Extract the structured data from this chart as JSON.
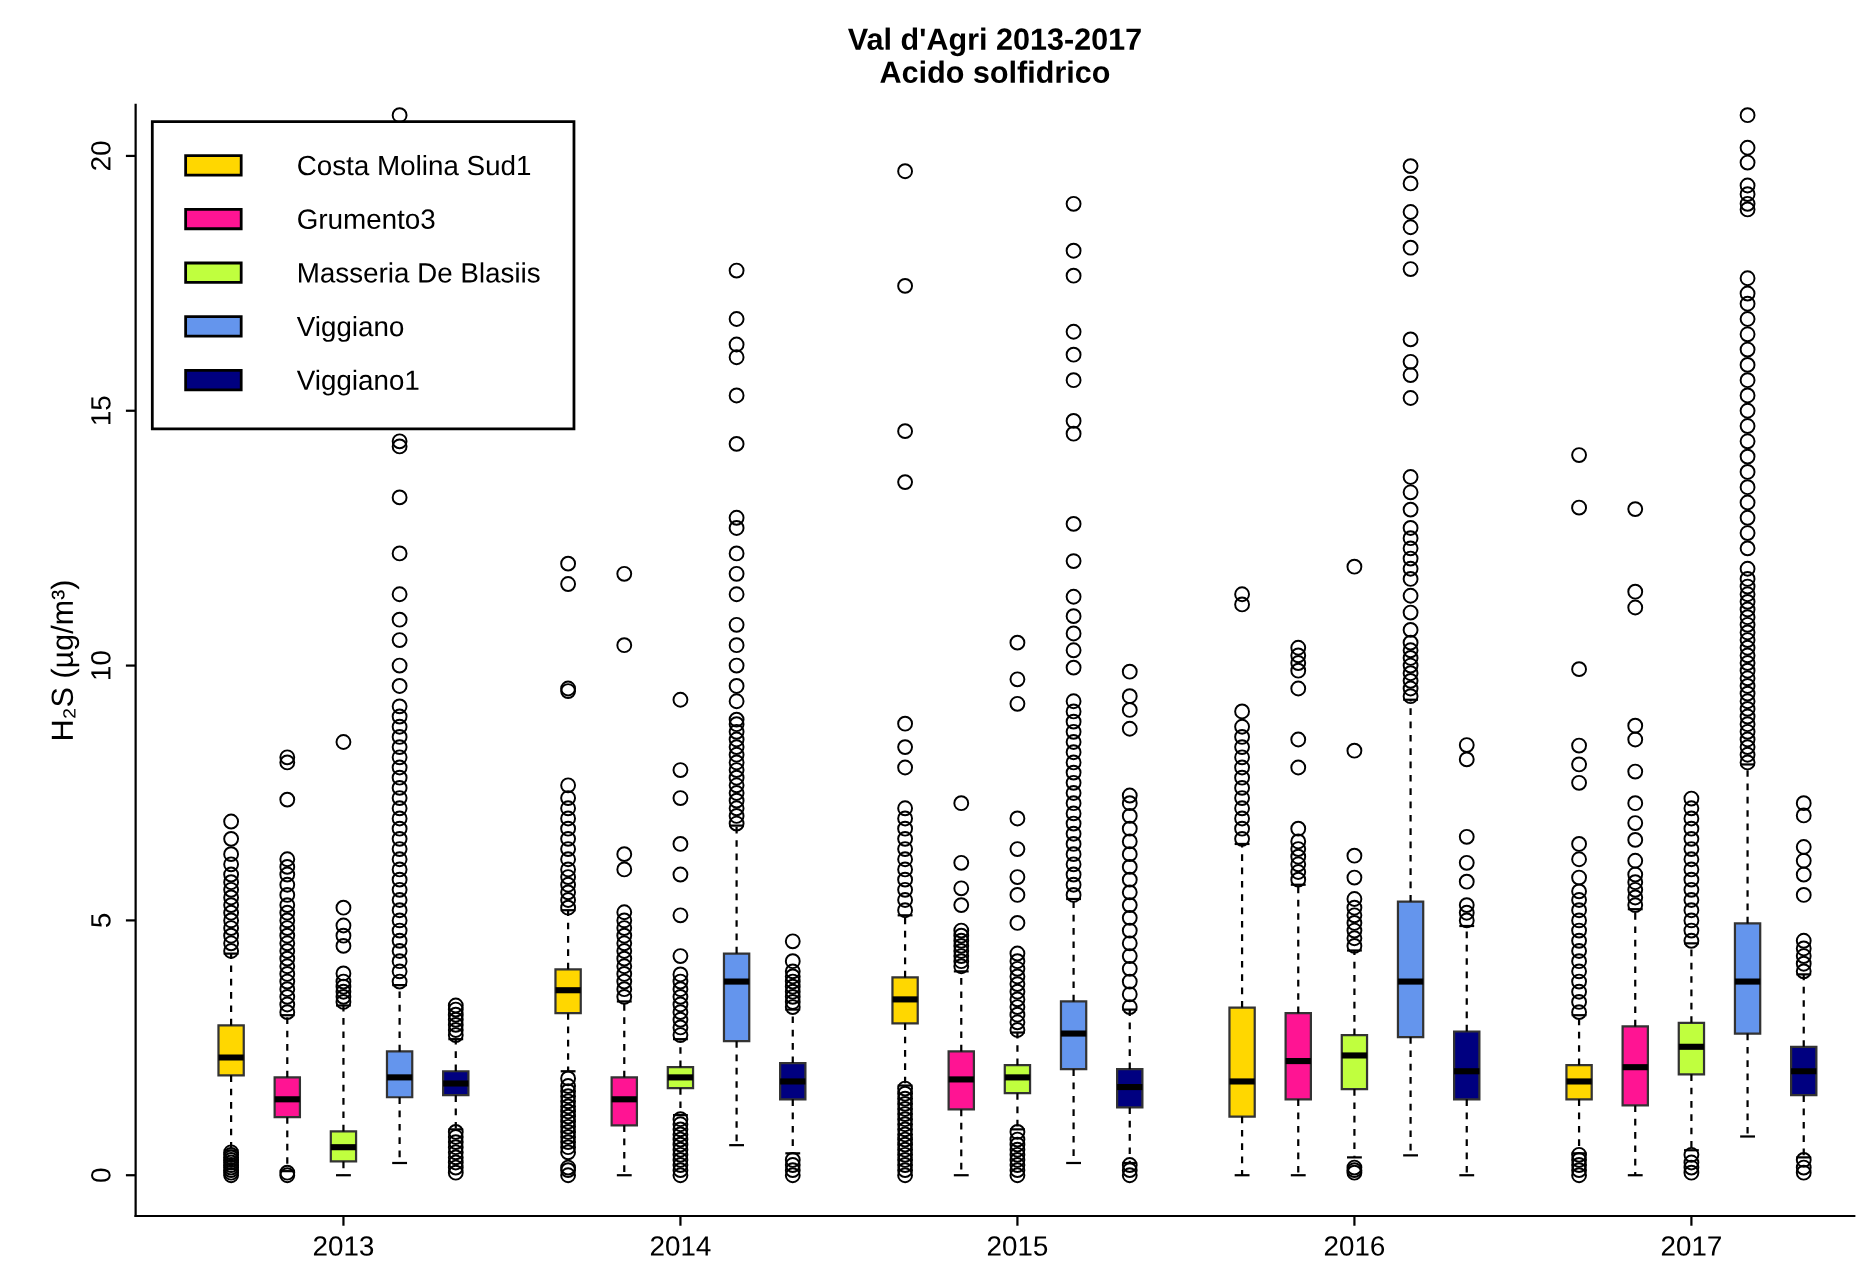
{
  "chart_data": {
    "type": "box",
    "title": "Val d'Agri 2013-2017",
    "subtitle": "Acido solfidrico",
    "ylabel": "H₂S (µg/m³)",
    "categories": [
      "2013",
      "2014",
      "2015",
      "2016",
      "2017"
    ],
    "ylim": [
      -0.8,
      21.0
    ],
    "yticks": [
      0,
      5,
      10,
      15,
      20
    ],
    "grid": false,
    "legend": "top left",
    "series": [
      {
        "name": "Costa Molina Sud1",
        "color": "#ffd700",
        "boxes": [
          {
            "low": 0.49,
            "q1": 1.96,
            "median": 2.31,
            "q3": 2.94,
            "high": 4.35,
            "outliers": [
              0.0,
              0.05,
              0.1,
              0.15,
              0.2,
              0.25,
              0.3,
              0.35,
              0.4,
              0.45,
              4.4,
              4.55,
              4.7,
              4.85,
              5.0,
              5.15,
              5.3,
              5.45,
              5.6,
              5.75,
              5.9,
              6.1,
              6.3,
              6.6,
              6.94
            ]
          },
          {
            "low": 2.04,
            "q1": 3.18,
            "median": 3.63,
            "q3": 4.04,
            "high": 5.2,
            "outliers": [
              0.0,
              0.1,
              0.15,
              0.45,
              0.55,
              0.65,
              0.75,
              0.85,
              0.95,
              1.05,
              1.15,
              1.25,
              1.35,
              1.45,
              1.55,
              1.65,
              1.75,
              1.9,
              5.25,
              5.4,
              5.55,
              5.7,
              5.85,
              6.0,
              6.2,
              6.4,
              6.6,
              6.8,
              7.0,
              7.2,
              7.4,
              7.65,
              9.5,
              9.55,
              11.6,
              12.0
            ]
          },
          {
            "low": 1.76,
            "q1": 2.98,
            "median": 3.45,
            "q3": 3.88,
            "high": 5.1,
            "outliers": [
              0.0,
              0.1,
              0.2,
              0.3,
              0.4,
              0.5,
              0.6,
              0.7,
              0.8,
              0.9,
              1.0,
              1.1,
              1.2,
              1.3,
              1.4,
              1.5,
              1.6,
              1.7,
              5.2,
              5.4,
              5.6,
              5.8,
              6.0,
              6.2,
              6.4,
              6.6,
              6.8,
              7.0,
              7.2,
              8.0,
              8.4,
              8.86,
              13.6,
              14.6,
              17.45,
              19.7
            ]
          },
          {
            "low": 0.0,
            "q1": 1.15,
            "median": 1.84,
            "q3": 3.29,
            "high": 6.5,
            "outliers": [
              6.6,
              6.8,
              7.0,
              7.2,
              7.4,
              7.6,
              7.8,
              8.0,
              8.2,
              8.4,
              8.6,
              8.8,
              9.1,
              11.2,
              11.4
            ]
          },
          {
            "low": 0.43,
            "q1": 1.49,
            "median": 1.84,
            "q3": 2.16,
            "high": 3.14,
            "outliers": [
              0.0,
              0.1,
              0.2,
              0.3,
              0.4,
              3.2,
              3.4,
              3.6,
              3.8,
              4.0,
              4.2,
              4.4,
              4.6,
              4.8,
              5.0,
              5.2,
              5.4,
              5.57,
              5.84,
              6.2,
              6.5,
              7.7,
              8.06,
              8.43,
              9.93,
              13.1,
              14.13
            ]
          }
        ]
      },
      {
        "name": "Grumento3",
        "color": "#ff1493",
        "boxes": [
          {
            "low": 0.08,
            "q1": 1.14,
            "median": 1.49,
            "q3": 1.92,
            "high": 3.14,
            "outliers": [
              0.0,
              0.05,
              3.2,
              3.35,
              3.5,
              3.65,
              3.8,
              3.95,
              4.1,
              4.25,
              4.4,
              4.55,
              4.7,
              4.85,
              5.0,
              5.15,
              5.3,
              5.5,
              5.7,
              5.9,
              6.05,
              6.2,
              7.37,
              8.1,
              8.2
            ]
          },
          {
            "low": 0.0,
            "q1": 0.98,
            "median": 1.49,
            "q3": 1.92,
            "high": 3.41,
            "outliers": [
              3.5,
              3.65,
              3.8,
              3.95,
              4.1,
              4.25,
              4.4,
              4.55,
              4.7,
              4.85,
              5.0,
              5.16,
              6.0,
              6.3,
              10.4,
              11.8
            ]
          },
          {
            "low": 0.0,
            "q1": 1.29,
            "median": 1.88,
            "q3": 2.43,
            "high": 4.0,
            "outliers": [
              4.1,
              4.2,
              4.3,
              4.4,
              4.5,
              4.6,
              4.7,
              4.8,
              5.3,
              5.63,
              6.13,
              7.3
            ]
          },
          {
            "low": 0.0,
            "q1": 1.49,
            "median": 2.24,
            "q3": 3.18,
            "high": 5.7,
            "outliers": [
              5.8,
              5.95,
              6.1,
              6.25,
              6.4,
              6.55,
              6.8,
              8.0,
              8.55,
              9.55,
              9.9,
              10.05,
              10.2,
              10.35
            ]
          },
          {
            "low": 0.0,
            "q1": 1.37,
            "median": 2.12,
            "q3": 2.92,
            "high": 5.22,
            "outliers": [
              5.3,
              5.45,
              5.6,
              5.75,
              5.9,
              6.17,
              6.58,
              6.91,
              7.3,
              7.92,
              8.55,
              8.82,
              11.14,
              11.45,
              13.07
            ]
          }
        ]
      },
      {
        "name": "Masseria De Blasiis",
        "color": "#c0ff3e",
        "boxes": [
          {
            "low": 0.0,
            "q1": 0.27,
            "median": 0.55,
            "q3": 0.86,
            "high": 3.33,
            "outliers": [
              3.4,
              3.5,
              3.6,
              3.7,
              3.8,
              3.96,
              4.5,
              4.7,
              4.9,
              5.25,
              8.5
            ]
          },
          {
            "low": 1.18,
            "q1": 1.71,
            "median": 1.92,
            "q3": 2.12,
            "high": 2.67,
            "outliers": [
              0.0,
              0.1,
              0.2,
              0.3,
              0.4,
              0.5,
              0.6,
              0.7,
              0.8,
              0.9,
              1.0,
              1.1,
              2.75,
              2.9,
              3.05,
              3.2,
              3.35,
              3.5,
              3.65,
              3.8,
              3.94,
              4.3,
              5.1,
              5.9,
              6.5,
              7.4,
              7.95,
              9.33
            ]
          },
          {
            "low": 0.9,
            "q1": 1.61,
            "median": 1.92,
            "q3": 2.16,
            "high": 2.8,
            "outliers": [
              0.0,
              0.1,
              0.2,
              0.3,
              0.4,
              0.5,
              0.6,
              0.7,
              0.85,
              2.85,
              3.0,
              3.15,
              3.3,
              3.45,
              3.6,
              3.75,
              3.9,
              4.05,
              4.2,
              4.35,
              4.95,
              5.5,
              5.85,
              6.4,
              7.0,
              9.25,
              9.73,
              10.45
            ]
          },
          {
            "low": 0.35,
            "q1": 1.69,
            "median": 2.35,
            "q3": 2.75,
            "high": 4.41,
            "outliers": [
              0.05,
              0.1,
              0.15,
              4.5,
              4.65,
              4.8,
              4.95,
              5.1,
              5.25,
              5.42,
              5.84,
              6.27,
              8.33,
              11.94
            ]
          },
          {
            "low": 0.49,
            "q1": 1.98,
            "median": 2.52,
            "q3": 2.99,
            "high": 4.55,
            "outliers": [
              0.05,
              0.15,
              0.25,
              0.4,
              4.6,
              4.8,
              5.0,
              5.2,
              5.4,
              5.6,
              5.8,
              6.0,
              6.2,
              6.4,
              6.6,
              6.8,
              7.0,
              7.2,
              7.39
            ]
          }
        ]
      },
      {
        "name": "Viggiano",
        "color": "#6495ed",
        "boxes": [
          {
            "low": 0.24,
            "q1": 1.53,
            "median": 1.92,
            "q3": 2.43,
            "high": 3.73,
            "outliers": [
              3.8,
              4.0,
              4.2,
              4.4,
              4.6,
              4.8,
              5.0,
              5.2,
              5.4,
              5.6,
              5.8,
              6.0,
              6.2,
              6.4,
              6.6,
              6.8,
              7.0,
              7.2,
              7.4,
              7.6,
              7.8,
              8.0,
              8.2,
              8.4,
              8.6,
              8.8,
              9.0,
              9.2,
              9.6,
              10.0,
              10.5,
              10.9,
              11.4,
              12.2,
              13.3,
              14.3,
              14.4,
              20.8
            ]
          },
          {
            "low": 0.59,
            "q1": 2.63,
            "median": 3.8,
            "q3": 4.35,
            "high": 6.86,
            "outliers": [
              6.9,
              7.05,
              7.2,
              7.35,
              7.5,
              7.65,
              7.8,
              7.95,
              8.1,
              8.25,
              8.4,
              8.55,
              8.7,
              8.85,
              8.94,
              9.3,
              9.6,
              10.0,
              10.4,
              10.8,
              11.4,
              11.8,
              12.2,
              12.7,
              12.9,
              14.35,
              15.3,
              16.05,
              16.3,
              16.8,
              17.75
            ]
          },
          {
            "low": 0.24,
            "q1": 2.08,
            "median": 2.78,
            "q3": 3.41,
            "high": 5.42,
            "outliers": [
              5.5,
              5.7,
              5.9,
              6.1,
              6.3,
              6.5,
              6.7,
              6.9,
              7.1,
              7.3,
              7.5,
              7.7,
              7.9,
              8.1,
              8.3,
              8.5,
              8.7,
              8.9,
              9.1,
              9.3,
              9.96,
              10.3,
              10.63,
              10.97,
              11.35,
              12.05,
              12.78,
              14.55,
              14.8,
              15.6,
              16.1,
              16.55,
              17.65,
              18.14,
              19.06
            ]
          },
          {
            "low": 0.39,
            "q1": 2.71,
            "median": 3.8,
            "q3": 5.37,
            "high": 9.33,
            "outliers": [
              9.4,
              9.55,
              9.7,
              9.85,
              10.0,
              10.15,
              10.3,
              10.45,
              10.7,
              11.04,
              11.37,
              11.7,
              11.9,
              12.1,
              12.3,
              12.5,
              12.7,
              13.06,
              13.4,
              13.7,
              15.25,
              15.7,
              15.96,
              16.4,
              17.78,
              18.2,
              18.6,
              18.9,
              19.46,
              19.8
            ]
          },
          {
            "low": 0.76,
            "q1": 2.78,
            "median": 3.8,
            "q3": 4.94,
            "high": 8.06,
            "outliers": [
              8.1,
              8.25,
              8.4,
              8.55,
              8.7,
              8.85,
              9.0,
              9.15,
              9.3,
              9.45,
              9.6,
              9.75,
              9.9,
              10.05,
              10.2,
              10.35,
              10.5,
              10.65,
              10.8,
              10.95,
              11.1,
              11.25,
              11.4,
              11.55,
              11.7,
              11.9,
              12.3,
              12.6,
              12.9,
              13.2,
              13.5,
              13.8,
              14.1,
              14.4,
              14.7,
              15.0,
              15.3,
              15.6,
              15.9,
              16.2,
              16.5,
              16.8,
              17.1,
              17.3,
              17.6,
              18.95,
              19.06,
              19.25,
              19.42,
              19.87,
              20.16,
              20.8
            ]
          }
        ]
      },
      {
        "name": "Viggiano1",
        "color": "#000080",
        "boxes": [
          {
            "low": 0.9,
            "q1": 1.57,
            "median": 1.8,
            "q3": 2.04,
            "high": 2.67,
            "outliers": [
              0.05,
              0.15,
              0.25,
              0.35,
              0.45,
              0.55,
              0.65,
              0.75,
              0.85,
              2.75,
              2.85,
              2.95,
              3.05,
              3.15,
              3.25,
              3.33
            ]
          },
          {
            "low": 0.43,
            "q1": 1.49,
            "median": 1.84,
            "q3": 2.2,
            "high": 3.25,
            "outliers": [
              0.0,
              0.1,
              0.2,
              0.3,
              3.3,
              3.4,
              3.5,
              3.6,
              3.7,
              3.8,
              3.9,
              4.0,
              4.2,
              4.59
            ]
          },
          {
            "low": 0.24,
            "q1": 1.33,
            "median": 1.73,
            "q3": 2.08,
            "high": 3.25,
            "outliers": [
              0.0,
              0.1,
              0.2,
              3.3,
              3.55,
              3.8,
              4.05,
              4.3,
              4.55,
              4.8,
              5.05,
              5.3,
              5.55,
              5.8,
              6.05,
              6.3,
              6.55,
              6.8,
              7.05,
              7.3,
              7.45,
              8.76,
              9.13,
              9.4,
              9.88
            ]
          },
          {
            "low": 0.0,
            "q1": 1.49,
            "median": 2.04,
            "q3": 2.82,
            "high": 4.89,
            "outliers": [
              5.0,
              5.15,
              5.3,
              5.76,
              6.13,
              6.64,
              8.16,
              8.44
            ]
          },
          {
            "low": 0.35,
            "q1": 1.57,
            "median": 2.04,
            "q3": 2.52,
            "high": 3.94,
            "outliers": [
              0.05,
              0.15,
              0.3,
              4.0,
              4.15,
              4.3,
              4.45,
              4.6,
              5.5,
              5.9,
              6.17,
              6.44,
              7.06,
              7.3
            ]
          }
        ]
      }
    ]
  }
}
